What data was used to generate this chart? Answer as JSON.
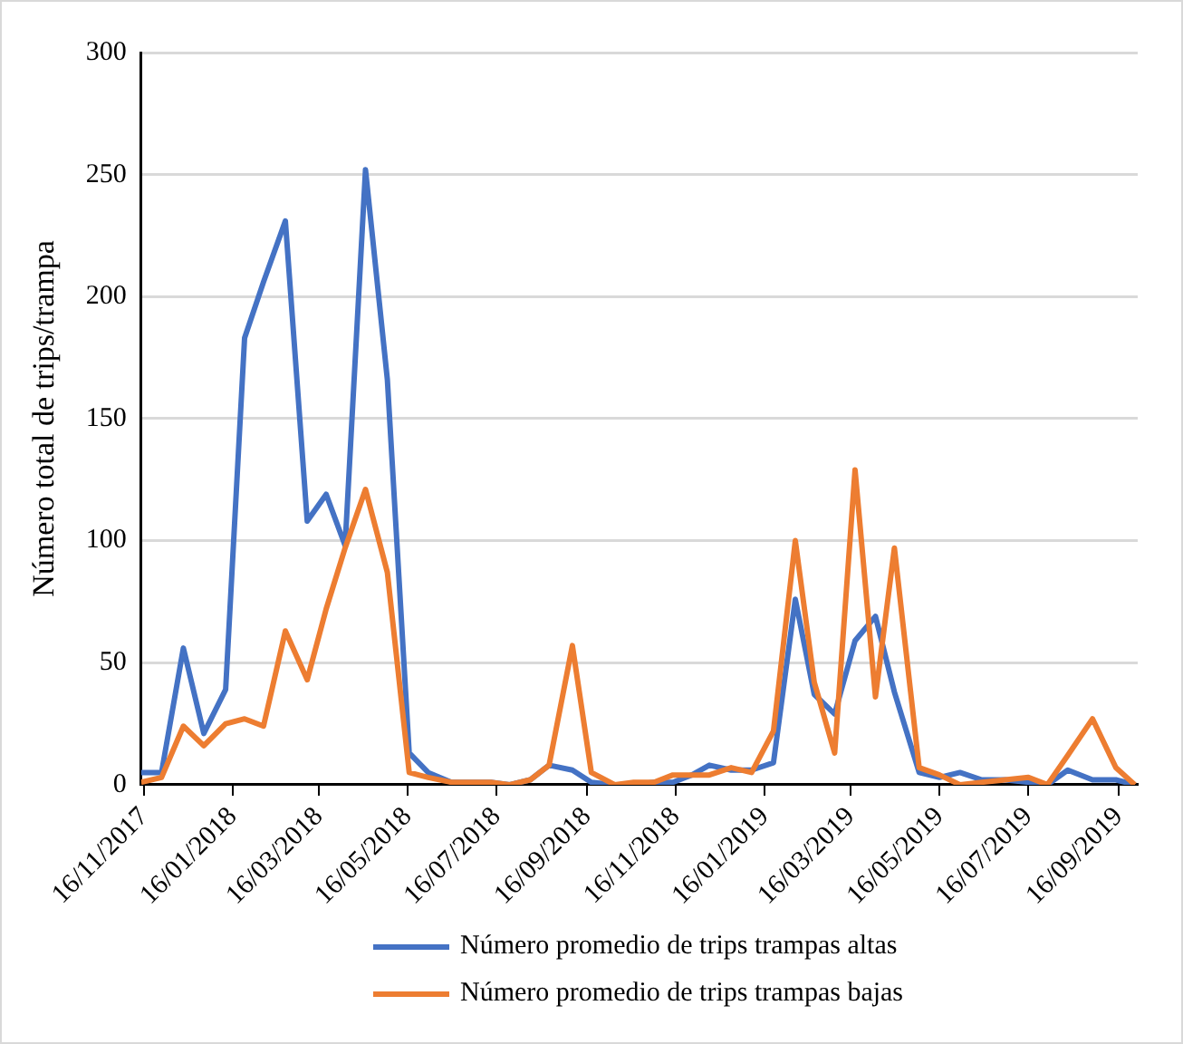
{
  "chart_data": {
    "type": "line",
    "ylabel": "Número total de trips/trampa",
    "x": [
      "2017-11-14",
      "2017-11-28",
      "2017-12-13",
      "2017-12-27",
      "2018-01-11",
      "2018-01-24",
      "2018-02-06",
      "2018-02-21",
      "2018-03-08",
      "2018-03-21",
      "2018-04-03",
      "2018-04-17",
      "2018-05-02",
      "2018-05-17",
      "2018-05-30",
      "2018-06-15",
      "2018-06-26",
      "2018-07-12",
      "2018-07-25",
      "2018-08-08",
      "2018-08-21",
      "2018-09-06",
      "2018-09-19",
      "2018-10-05",
      "2018-10-18",
      "2018-11-01",
      "2018-11-14",
      "2018-11-27",
      "2018-12-09",
      "2018-12-24",
      "2019-01-07",
      "2019-01-22",
      "2019-02-06",
      "2019-02-19",
      "2019-03-05",
      "2019-03-19",
      "2019-04-02",
      "2019-04-15",
      "2019-05-02",
      "2019-05-16",
      "2019-05-30",
      "2019-06-14",
      "2019-06-30",
      "2019-07-16",
      "2019-07-29",
      "2019-08-12",
      "2019-08-29",
      "2019-09-14",
      "2019-09-27"
    ],
    "series": [
      {
        "name": "Número promedio de trips trampas altas",
        "color": "#4472c4",
        "values": [
          5,
          5,
          56,
          21,
          39,
          183,
          206,
          231,
          108,
          119,
          98,
          252,
          166,
          13,
          5,
          1,
          1,
          1,
          0,
          2,
          8,
          6,
          1,
          0,
          0,
          1,
          1,
          4,
          8,
          6,
          6,
          9,
          76,
          37,
          29,
          59,
          69,
          38,
          5,
          3,
          5,
          2,
          2,
          1,
          0,
          6,
          2,
          2,
          0
        ]
      },
      {
        "name": "Número promedio de trips trampas bajas",
        "color": "#ed7d31",
        "values": [
          1,
          3,
          24,
          16,
          25,
          27,
          24,
          63,
          43,
          72,
          97,
          121,
          87,
          5,
          3,
          1,
          1,
          1,
          0,
          2,
          8,
          57,
          5,
          0,
          1,
          1,
          4,
          4,
          4,
          7,
          5,
          22,
          100,
          42,
          13,
          129,
          36,
          97,
          7,
          4,
          0,
          1,
          2,
          3,
          0,
          12,
          27,
          7,
          0
        ]
      }
    ],
    "xlim": [
      "2017-11-14",
      "2019-09-29"
    ],
    "xticks": [
      {
        "value": "2017-11-16",
        "label": "16/11/2017"
      },
      {
        "value": "2018-01-16",
        "label": "16/01/2018"
      },
      {
        "value": "2018-03-16",
        "label": "16/03/2018"
      },
      {
        "value": "2018-05-16",
        "label": "16/05/2018"
      },
      {
        "value": "2018-07-16",
        "label": "16/07/2018"
      },
      {
        "value": "2018-09-16",
        "label": "16/09/2018"
      },
      {
        "value": "2018-11-16",
        "label": "16/11/2018"
      },
      {
        "value": "2019-01-16",
        "label": "16/01/2019"
      },
      {
        "value": "2019-03-16",
        "label": "16/03/2019"
      },
      {
        "value": "2019-05-16",
        "label": "16/05/2019"
      },
      {
        "value": "2019-07-16",
        "label": "16/07/2019"
      },
      {
        "value": "2019-09-16",
        "label": "16/09/2019"
      }
    ],
    "ylim": [
      0,
      300
    ],
    "yticks": [
      0,
      50,
      100,
      150,
      200,
      250,
      300
    ],
    "grid": "y",
    "legend": "bottom",
    "marker": "none",
    "line_style": "solid"
  }
}
